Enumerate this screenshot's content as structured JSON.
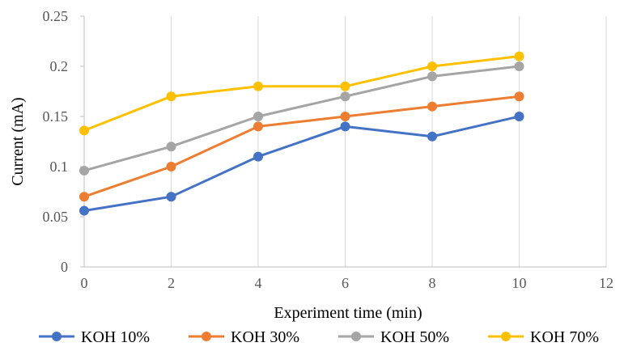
{
  "chart_data": {
    "type": "line",
    "title": "",
    "xlabel": "Experiment time (min)",
    "ylabel": "Current (mA)",
    "xlim": [
      0,
      12
    ],
    "ylim": [
      0,
      0.25
    ],
    "xticks": [
      0,
      2,
      4,
      6,
      8,
      10,
      12
    ],
    "xtick_labels": [
      "0",
      "2",
      "4",
      "6",
      "8",
      "10",
      "12"
    ],
    "yticks": [
      0,
      0.05,
      0.1,
      0.15,
      0.2,
      0.25
    ],
    "ytick_labels": [
      "0",
      "0.05",
      "0.1",
      "0.15",
      "0.2",
      "0.25"
    ],
    "grid": "vertical",
    "legend_position": "bottom",
    "x": [
      0,
      2,
      4,
      6,
      8,
      10
    ],
    "series": [
      {
        "name": "KOH 10%",
        "color": "#4472C4",
        "values": [
          0.056,
          0.07,
          0.11,
          0.14,
          0.13,
          0.15
        ]
      },
      {
        "name": "KOH 30%",
        "color": "#ED7D31",
        "values": [
          0.07,
          0.1,
          0.14,
          0.15,
          0.16,
          0.17
        ]
      },
      {
        "name": "KOH 50%",
        "color": "#A5A5A5",
        "values": [
          0.096,
          0.12,
          0.15,
          0.17,
          0.19,
          0.2
        ]
      },
      {
        "name": "KOH 70%",
        "color": "#FFC000",
        "values": [
          0.136,
          0.17,
          0.18,
          0.18,
          0.2,
          0.21
        ]
      }
    ]
  }
}
